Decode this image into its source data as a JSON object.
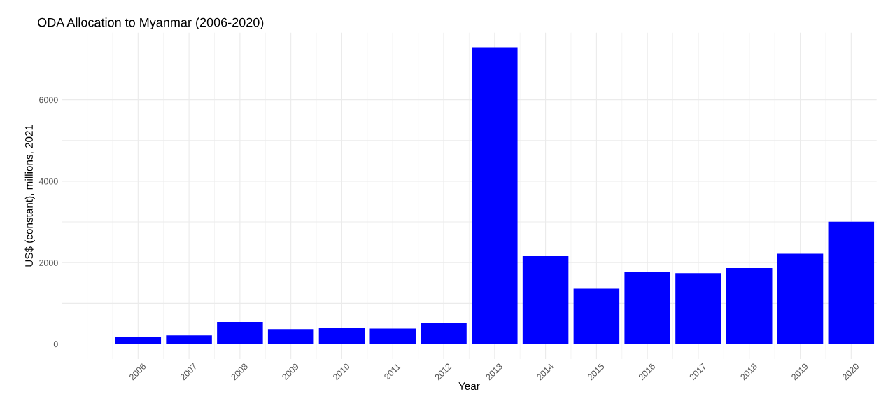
{
  "chart_data": {
    "type": "bar",
    "title": "ODA Allocation to Myanmar (2006-2020)",
    "xlabel": "Year",
    "ylabel": "US$ (constant), millions, 2021",
    "categories": [
      null,
      "2006",
      "2007",
      "2008",
      "2009",
      "2010",
      "2011",
      "2012",
      "2013",
      "2014",
      "2015",
      "2016",
      "2017",
      "2018",
      "2019",
      "2020"
    ],
    "values": [
      null,
      170,
      210,
      540,
      365,
      395,
      380,
      510,
      7290,
      2160,
      1360,
      1765,
      1740,
      1865,
      2220,
      3005
    ],
    "color": "#0000ff",
    "ylim": [
      -370,
      7650
    ],
    "yticks": [
      0,
      {
        "value": 1000,
        "label": null
      },
      2000,
      {
        "value": 3000,
        "label": null
      },
      4000,
      {
        "value": 5000,
        "label": null
      },
      6000,
      {
        "value": 7000,
        "label": null
      }
    ],
    "grid": true
  }
}
